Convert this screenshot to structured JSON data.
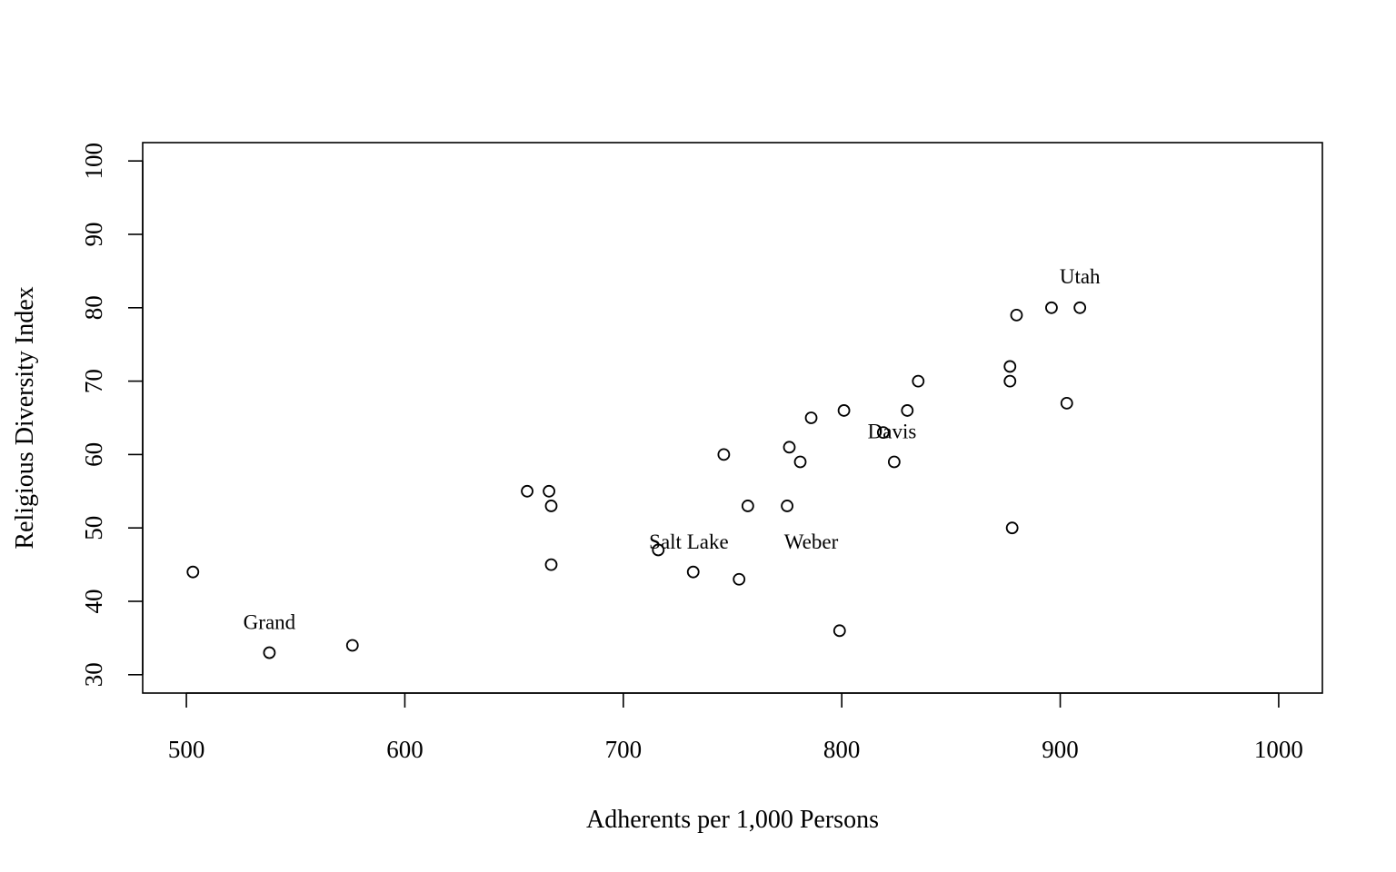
{
  "chart_data": {
    "type": "scatter",
    "title": "",
    "xlabel": "Adherents per 1,000 Persons",
    "ylabel": "Religious Diversity Index",
    "xlim": [
      480,
      1020
    ],
    "ylim": [
      27.5,
      102.5
    ],
    "xticks": [
      500,
      600,
      700,
      800,
      900,
      1000
    ],
    "yticks": [
      30,
      40,
      50,
      60,
      70,
      80,
      90,
      100
    ],
    "grid": false,
    "legend": "none",
    "points": [
      {
        "x": 503,
        "y": 44
      },
      {
        "x": 538,
        "y": 33
      },
      {
        "x": 576,
        "y": 34
      },
      {
        "x": 656,
        "y": 55
      },
      {
        "x": 666,
        "y": 55
      },
      {
        "x": 667,
        "y": 53
      },
      {
        "x": 667,
        "y": 45
      },
      {
        "x": 716,
        "y": 47
      },
      {
        "x": 732,
        "y": 44
      },
      {
        "x": 746,
        "y": 60
      },
      {
        "x": 753,
        "y": 43
      },
      {
        "x": 757,
        "y": 53
      },
      {
        "x": 775,
        "y": 53
      },
      {
        "x": 776,
        "y": 61
      },
      {
        "x": 781,
        "y": 59
      },
      {
        "x": 786,
        "y": 65
      },
      {
        "x": 799,
        "y": 36
      },
      {
        "x": 801,
        "y": 66
      },
      {
        "x": 819,
        "y": 63
      },
      {
        "x": 824,
        "y": 59
      },
      {
        "x": 830,
        "y": 66
      },
      {
        "x": 835,
        "y": 70
      },
      {
        "x": 877,
        "y": 72
      },
      {
        "x": 877,
        "y": 70
      },
      {
        "x": 878,
        "y": 50
      },
      {
        "x": 880,
        "y": 79
      },
      {
        "x": 896,
        "y": 80
      },
      {
        "x": 903,
        "y": 67
      },
      {
        "x": 909,
        "y": 80
      }
    ],
    "annotations": [
      {
        "text": "Grand",
        "x": 538,
        "y": 36.2
      },
      {
        "text": "Salt Lake",
        "x": 730,
        "y": 47.2
      },
      {
        "text": "Weber",
        "x": 786,
        "y": 47.2
      },
      {
        "text": "Davis",
        "x": 823,
        "y": 62.2
      },
      {
        "text": "Utah",
        "x": 909,
        "y": 83.3
      }
    ]
  }
}
